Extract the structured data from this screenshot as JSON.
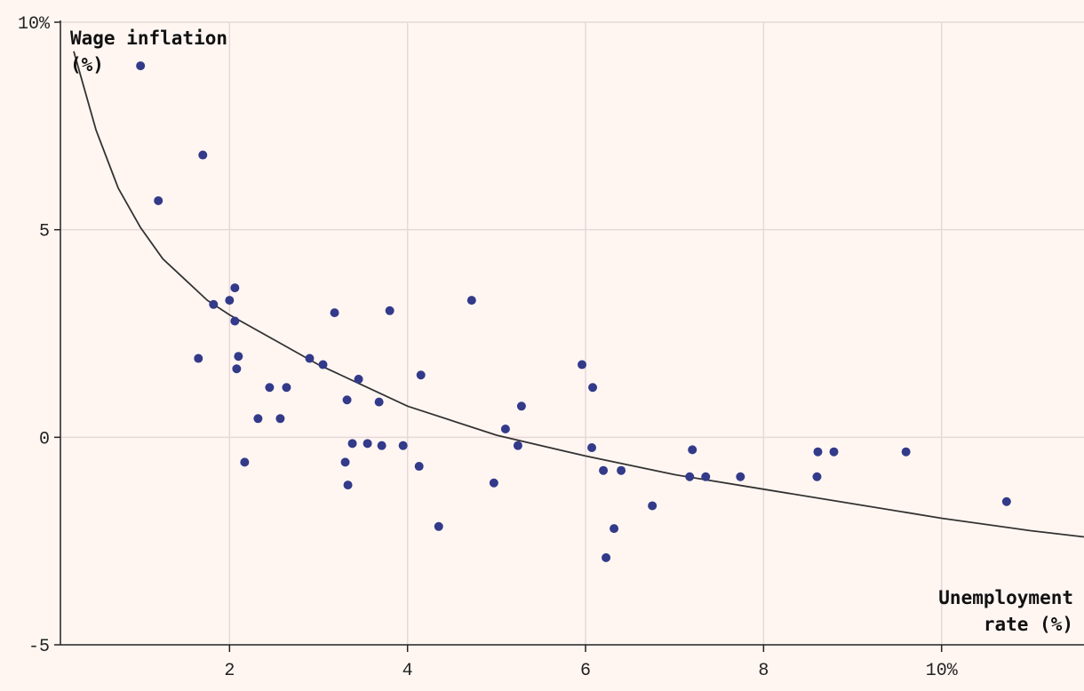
{
  "chart_data": {
    "type": "scatter",
    "title": "",
    "ylabel_lines": [
      "Wage inflation",
      "(%)"
    ],
    "xlabel_lines": [
      "Unemployment",
      "rate (%)"
    ],
    "xlim": [
      0.1,
      11.6
    ],
    "ylim": [
      -5,
      10
    ],
    "x_ticks": [
      {
        "value": 2,
        "label": "2"
      },
      {
        "value": 4,
        "label": "4"
      },
      {
        "value": 6,
        "label": "6"
      },
      {
        "value": 8,
        "label": "8"
      },
      {
        "value": 10,
        "label": "10%"
      }
    ],
    "y_ticks": [
      {
        "value": 10,
        "label": "10%"
      },
      {
        "value": 5,
        "label": "5"
      },
      {
        "value": 0,
        "label": "0"
      },
      {
        "value": -5,
        "label": "-5"
      }
    ],
    "grid": true,
    "colors": {
      "points": "#333a8a",
      "curve": "#333333",
      "grid": "#e6d8d8",
      "axis": "#222222",
      "background": "#fff6f2"
    },
    "series": [
      {
        "points": [
          {
            "x": 1.0,
            "y": 8.95
          },
          {
            "x": 1.2,
            "y": 5.7
          },
          {
            "x": 1.7,
            "y": 6.8
          },
          {
            "x": 1.82,
            "y": 3.2
          },
          {
            "x": 1.65,
            "y": 1.9
          },
          {
            "x": 2.0,
            "y": 3.3
          },
          {
            "x": 2.06,
            "y": 3.6
          },
          {
            "x": 2.06,
            "y": 2.8
          },
          {
            "x": 2.1,
            "y": 1.95
          },
          {
            "x": 2.08,
            "y": 1.65
          },
          {
            "x": 2.17,
            "y": -0.6
          },
          {
            "x": 2.32,
            "y": 0.45
          },
          {
            "x": 2.45,
            "y": 1.2
          },
          {
            "x": 2.57,
            "y": 0.45
          },
          {
            "x": 2.64,
            "y": 1.2
          },
          {
            "x": 2.9,
            "y": 1.9
          },
          {
            "x": 3.05,
            "y": 1.75
          },
          {
            "x": 3.18,
            "y": 3.0
          },
          {
            "x": 3.3,
            "y": -0.6
          },
          {
            "x": 3.32,
            "y": 0.9
          },
          {
            "x": 3.33,
            "y": -1.15
          },
          {
            "x": 3.38,
            "y": -0.15
          },
          {
            "x": 3.45,
            "y": 1.4
          },
          {
            "x": 3.55,
            "y": -0.15
          },
          {
            "x": 3.68,
            "y": 0.85
          },
          {
            "x": 3.71,
            "y": -0.2
          },
          {
            "x": 3.8,
            "y": 3.05
          },
          {
            "x": 3.95,
            "y": -0.2
          },
          {
            "x": 4.13,
            "y": -0.7
          },
          {
            "x": 4.15,
            "y": 1.5
          },
          {
            "x": 4.35,
            "y": -2.15
          },
          {
            "x": 4.72,
            "y": 3.3
          },
          {
            "x": 4.97,
            "y": -1.1
          },
          {
            "x": 5.1,
            "y": 0.2
          },
          {
            "x": 5.24,
            "y": -0.2
          },
          {
            "x": 5.28,
            "y": 0.75
          },
          {
            "x": 5.96,
            "y": 1.75
          },
          {
            "x": 6.07,
            "y": -0.25
          },
          {
            "x": 6.08,
            "y": 1.2
          },
          {
            "x": 6.2,
            "y": -0.8
          },
          {
            "x": 6.23,
            "y": -2.9
          },
          {
            "x": 6.32,
            "y": -2.2
          },
          {
            "x": 6.4,
            "y": -0.8
          },
          {
            "x": 6.75,
            "y": -1.65
          },
          {
            "x": 7.17,
            "y": -0.95
          },
          {
            "x": 7.2,
            "y": -0.3
          },
          {
            "x": 7.35,
            "y": -0.95
          },
          {
            "x": 7.74,
            "y": -0.95
          },
          {
            "x": 8.6,
            "y": -0.95
          },
          {
            "x": 8.61,
            "y": -0.35
          },
          {
            "x": 8.79,
            "y": -0.35
          },
          {
            "x": 9.6,
            "y": -0.35
          },
          {
            "x": 10.73,
            "y": -1.55
          }
        ]
      }
    ],
    "trend_curve": {
      "points": [
        {
          "x": 0.25,
          "y": 9.3
        },
        {
          "x": 0.5,
          "y": 7.4
        },
        {
          "x": 0.75,
          "y": 6.0
        },
        {
          "x": 1.0,
          "y": 5.05
        },
        {
          "x": 1.25,
          "y": 4.3
        },
        {
          "x": 1.5,
          "y": 3.8
        },
        {
          "x": 1.75,
          "y": 3.3
        },
        {
          "x": 2.0,
          "y": 2.95
        },
        {
          "x": 2.5,
          "y": 2.35
        },
        {
          "x": 3.0,
          "y": 1.75
        },
        {
          "x": 3.5,
          "y": 1.25
        },
        {
          "x": 4.0,
          "y": 0.75
        },
        {
          "x": 5.0,
          "y": 0.05
        },
        {
          "x": 6.0,
          "y": -0.45
        },
        {
          "x": 7.0,
          "y": -0.9
        },
        {
          "x": 8.0,
          "y": -1.25
        },
        {
          "x": 9.0,
          "y": -1.6
        },
        {
          "x": 10.0,
          "y": -1.95
        },
        {
          "x": 11.0,
          "y": -2.25
        },
        {
          "x": 11.6,
          "y": -2.4
        }
      ]
    }
  }
}
